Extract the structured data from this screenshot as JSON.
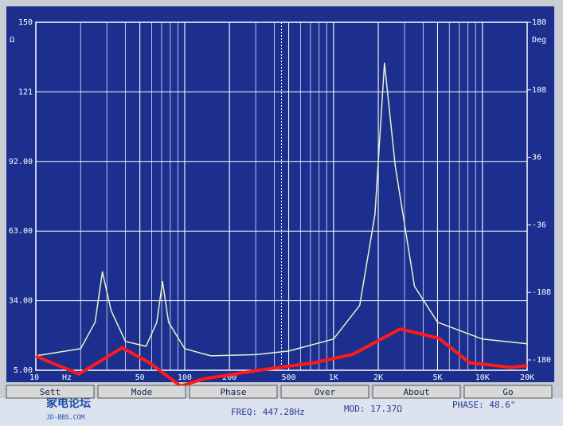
{
  "chart_data": {
    "type": "line",
    "y_unit": "Ω",
    "y2_unit": "Deg",
    "x_unit": "Hz",
    "xscale": "log",
    "xlim": [
      10,
      20000
    ],
    "xticks": [
      10,
      50,
      100,
      200,
      500,
      {
        "value": 1000,
        "label": "1K"
      },
      {
        "value": 2000,
        "label": "2K"
      },
      {
        "value": 5000,
        "label": "5K"
      },
      {
        "value": 10000,
        "label": "10K"
      },
      {
        "value": 20000,
        "label": "20K"
      }
    ],
    "ylim": [
      5,
      150
    ],
    "yticks": [
      {
        "value": 5,
        "label": "5.00"
      },
      {
        "value": 34,
        "label": "34.00"
      },
      {
        "value": 63,
        "label": "63.00"
      },
      {
        "value": 92,
        "label": "92.00"
      },
      121,
      150
    ],
    "y2lim": [
      -180,
      180
    ],
    "y2ticks": [
      -180,
      -108,
      -36,
      36,
      108,
      180
    ],
    "grid": true,
    "cursor": 447.28,
    "series": [
      {
        "name": "MOD",
        "color": "#e8f4c8",
        "x": [
          10,
          20,
          25,
          28,
          32,
          40,
          55,
          65,
          71,
          78,
          100,
          150,
          300,
          500,
          1000,
          1500,
          1900,
          2200,
          2600,
          3500,
          5000,
          10000,
          20000
        ],
        "values": [
          11,
          14,
          25,
          46,
          30,
          17,
          15,
          25,
          42,
          25,
          14,
          11,
          11.5,
          13,
          18,
          32,
          70,
          133,
          90,
          40,
          25,
          18,
          16
        ]
      },
      {
        "name": "PHASE",
        "color": "#ff1a1a",
        "axis": "y2",
        "x": [
          10,
          19.5,
          38,
          58,
          94,
          135,
          315,
          740,
          1350,
          2800,
          5100,
          8200,
          15600,
          20000
        ],
        "values": [
          -176,
          -195,
          -167,
          -183,
          -208,
          -200,
          -191,
          -183,
          -174,
          -147,
          -157,
          -183,
          -188,
          -186
        ]
      }
    ],
    "buttons": [
      "Sett",
      "Mode",
      "Phase",
      "Over",
      "About",
      "Go"
    ],
    "status": [
      "FREQ: 447.28Hz",
      "MOD: 17.37Ω",
      "PHASE: 48.6°"
    ],
    "watermark": [
      "家电论坛",
      "JD-BBS.COM"
    ]
  }
}
